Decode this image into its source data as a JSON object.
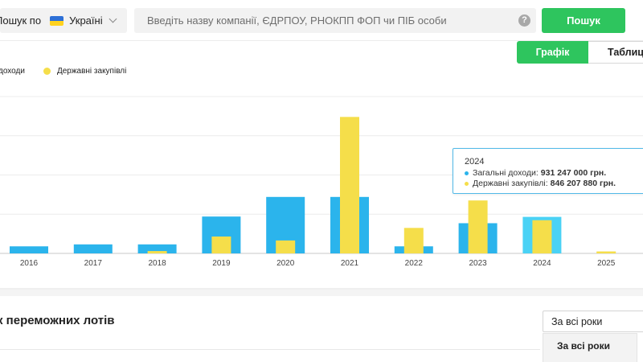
{
  "header": {
    "scope_label": "Пошук по",
    "scope_value": "Україні",
    "search_placeholder": "Введіть назву компанії, ЄДРПОУ, РНОКПП ФОП чи ПІБ особи",
    "help_icon": "?",
    "search_button": "Пошук"
  },
  "view_tabs": {
    "graph": "Графік",
    "table": "Таблиц"
  },
  "colors": {
    "income": "#2bb4ec",
    "procurement": "#f5de4a",
    "accent": "#2ec55e",
    "highlight": "#4ad2f5"
  },
  "chart_data": {
    "type": "bar",
    "legend": [
      "доходи",
      "Державні закупівлі"
    ],
    "categories": [
      "2016",
      "2017",
      "2018",
      "2019",
      "2020",
      "2021",
      "2022",
      "2023",
      "2024",
      "2025"
    ],
    "series": [
      {
        "name": "Загальні доходи",
        "values": [
          180000000,
          230000000,
          230000000,
          940000000,
          1440000000,
          1440000000,
          180000000,
          770000000,
          931247000,
          0
        ]
      },
      {
        "name": "Державні закупівлі",
        "values": [
          0,
          0,
          60000000,
          430000000,
          330000000,
          3480000000,
          650000000,
          1350000000,
          846207880,
          50000000
        ]
      }
    ],
    "ylim": [
      0,
      4000000000
    ],
    "grid": true,
    "highlighted": "2024"
  },
  "tooltip": {
    "year": "2024",
    "income_label": "Загальні доходи:",
    "income_value": "931 247 000 грн.",
    "procurement_label": "Державні закупівлі:",
    "procurement_value": "846 207 880 грн."
  },
  "lots": {
    "title": "к переможних лотів",
    "period_selected": "За всі роки",
    "period_option": "За всі роки"
  }
}
